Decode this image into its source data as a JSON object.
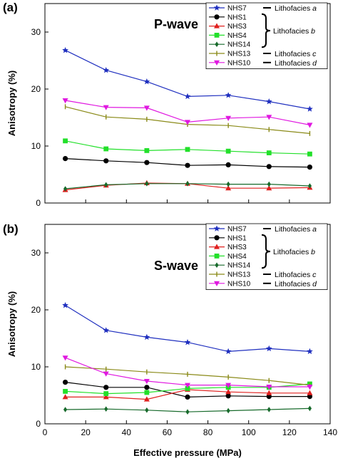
{
  "figure": {
    "xlabel": "Effective pressure (MPa)",
    "ylabel": "Anisotropy (%)"
  },
  "chart_data": [
    {
      "type": "line",
      "panel_label": "(a)",
      "title": "P-wave",
      "xlabel": "Effective pressure (MPa)",
      "ylabel": "Anisotropy (%)",
      "xlim": [
        0,
        140
      ],
      "ylim": [
        0,
        35
      ],
      "x_ticks": [
        "0",
        "20",
        "40",
        "60",
        "80",
        "100",
        "120",
        "140"
      ],
      "y_ticks": [
        "0",
        "10",
        "20",
        "30"
      ],
      "grid": false,
      "legend_position": "top-right",
      "x": [
        10,
        30,
        50,
        70,
        90,
        110,
        130
      ],
      "series": [
        {
          "name": "NHS7",
          "color": "#1f2fbf",
          "marker": "star",
          "values": [
            26.8,
            23.3,
            21.3,
            18.7,
            18.9,
            17.8,
            16.5
          ]
        },
        {
          "name": "NHS1",
          "color": "#000000",
          "marker": "circle",
          "values": [
            7.8,
            7.4,
            7.1,
            6.6,
            6.7,
            6.4,
            6.3
          ]
        },
        {
          "name": "NHS3",
          "color": "#e0201f",
          "marker": "triangle-up",
          "values": [
            2.3,
            3.1,
            3.5,
            3.4,
            2.6,
            2.6,
            2.7
          ]
        },
        {
          "name": "NHS4",
          "color": "#22e02a",
          "marker": "square",
          "values": [
            10.9,
            9.5,
            9.2,
            9.4,
            9.1,
            8.8,
            8.6
          ]
        },
        {
          "name": "NHS14",
          "color": "#176a2b",
          "marker": "diamond",
          "values": [
            2.5,
            3.2,
            3.4,
            3.4,
            3.3,
            3.3,
            3.0
          ]
        },
        {
          "name": "NHS13",
          "color": "#8a8a18",
          "marker": "tick",
          "values": [
            16.9,
            15.1,
            14.7,
            13.8,
            13.6,
            12.9,
            12.2
          ]
        },
        {
          "name": "NHS10",
          "color": "#e018e0",
          "marker": "triangle-down",
          "values": [
            18.0,
            16.8,
            16.7,
            14.2,
            14.9,
            15.1,
            13.7
          ]
        }
      ],
      "lithofacies_annotations": [
        {
          "text": "Lithofacies a",
          "applies_to": [
            "NHS7"
          ]
        },
        {
          "text": "Lithofacies b",
          "applies_to": [
            "NHS1",
            "NHS3",
            "NHS4",
            "NHS14"
          ]
        },
        {
          "text": "Lithofacies c",
          "applies_to": [
            "NHS13"
          ]
        },
        {
          "text": "Lithofacies d",
          "applies_to": [
            "NHS10"
          ]
        }
      ]
    },
    {
      "type": "line",
      "panel_label": "(b)",
      "title": "S-wave",
      "xlabel": "Effective pressure (MPa)",
      "ylabel": "Anisotropy (%)",
      "xlim": [
        0,
        140
      ],
      "ylim": [
        0,
        35
      ],
      "x_ticks": [
        "0",
        "20",
        "40",
        "60",
        "80",
        "100",
        "120",
        "140"
      ],
      "y_ticks": [
        "0",
        "10",
        "20",
        "30"
      ],
      "grid": false,
      "legend_position": "top-right",
      "x": [
        10,
        30,
        50,
        70,
        90,
        110,
        130
      ],
      "series": [
        {
          "name": "NHS7",
          "color": "#1f2fbf",
          "marker": "star",
          "values": [
            20.8,
            16.4,
            15.2,
            14.3,
            12.7,
            13.2,
            12.7
          ]
        },
        {
          "name": "NHS1",
          "color": "#000000",
          "marker": "circle",
          "values": [
            7.3,
            6.4,
            6.4,
            4.7,
            4.9,
            4.8,
            4.8
          ]
        },
        {
          "name": "NHS3",
          "color": "#e0201f",
          "marker": "triangle-up",
          "values": [
            4.7,
            4.7,
            4.3,
            6.0,
            5.6,
            5.4,
            5.4
          ]
        },
        {
          "name": "NHS4",
          "color": "#22e02a",
          "marker": "square",
          "values": [
            5.7,
            5.3,
            5.5,
            6.2,
            6.4,
            6.4,
            7.0
          ]
        },
        {
          "name": "NHS14",
          "color": "#176a2b",
          "marker": "diamond",
          "values": [
            2.5,
            2.6,
            2.4,
            2.1,
            2.3,
            2.5,
            2.7
          ]
        },
        {
          "name": "NHS13",
          "color": "#8a8a18",
          "marker": "tick",
          "values": [
            10.0,
            9.6,
            9.1,
            8.7,
            8.2,
            7.6,
            6.8
          ]
        },
        {
          "name": "NHS10",
          "color": "#e018e0",
          "marker": "triangle-down",
          "values": [
            11.6,
            8.8,
            7.5,
            6.8,
            6.8,
            6.5,
            6.5
          ]
        }
      ],
      "lithofacies_annotations": [
        {
          "text": "Lithofacies a",
          "applies_to": [
            "NHS7"
          ]
        },
        {
          "text": "Lithofacies b",
          "applies_to": [
            "NHS1",
            "NHS3",
            "NHS4",
            "NHS14"
          ]
        },
        {
          "text": "Lithofacies c",
          "applies_to": [
            "NHS13"
          ]
        },
        {
          "text": "Lithofacies d",
          "applies_to": [
            "NHS10"
          ]
        }
      ]
    }
  ]
}
